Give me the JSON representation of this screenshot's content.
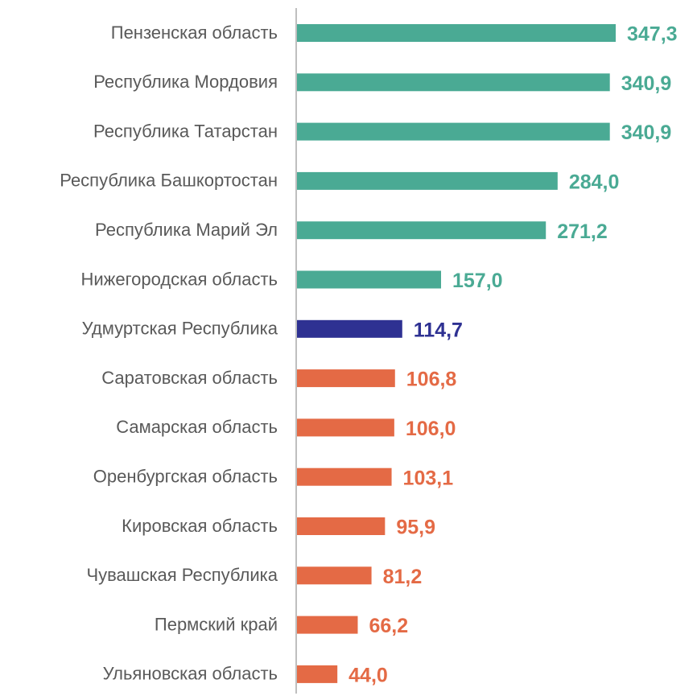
{
  "chart_data": {
    "type": "bar",
    "orientation": "horizontal",
    "categories": [
      "Пензенская область",
      "Республика Мордовия",
      "Республика Татарстан",
      "Республика Башкортостан",
      "Республика Марий Эл",
      "Нижегородская область",
      "Удмуртская Республика",
      "Саратовская область",
      "Самарская область",
      "Оренбургская область",
      "Кировская область",
      "Чувашская Республика",
      "Пермский край",
      "Ульяновская область"
    ],
    "values": [
      347.3,
      340.9,
      340.9,
      284.0,
      271.2,
      157.0,
      114.7,
      106.8,
      106.0,
      103.1,
      95.9,
      81.2,
      66.2,
      44.0
    ],
    "value_labels": [
      "347,3",
      "340,9",
      "340,9",
      "284,0",
      "271,2",
      "157,0",
      "114,7",
      "106,8",
      "106,0",
      "103,1",
      "95,9",
      "81,2",
      "66,2",
      "44,0"
    ],
    "colors": [
      "#4aaa94",
      "#4aaa94",
      "#4aaa94",
      "#4aaa94",
      "#4aaa94",
      "#4aaa94",
      "#2e3192",
      "#e46a45",
      "#e46a45",
      "#e46a45",
      "#e46a45",
      "#e46a45",
      "#e46a45",
      "#e46a45"
    ]
  }
}
